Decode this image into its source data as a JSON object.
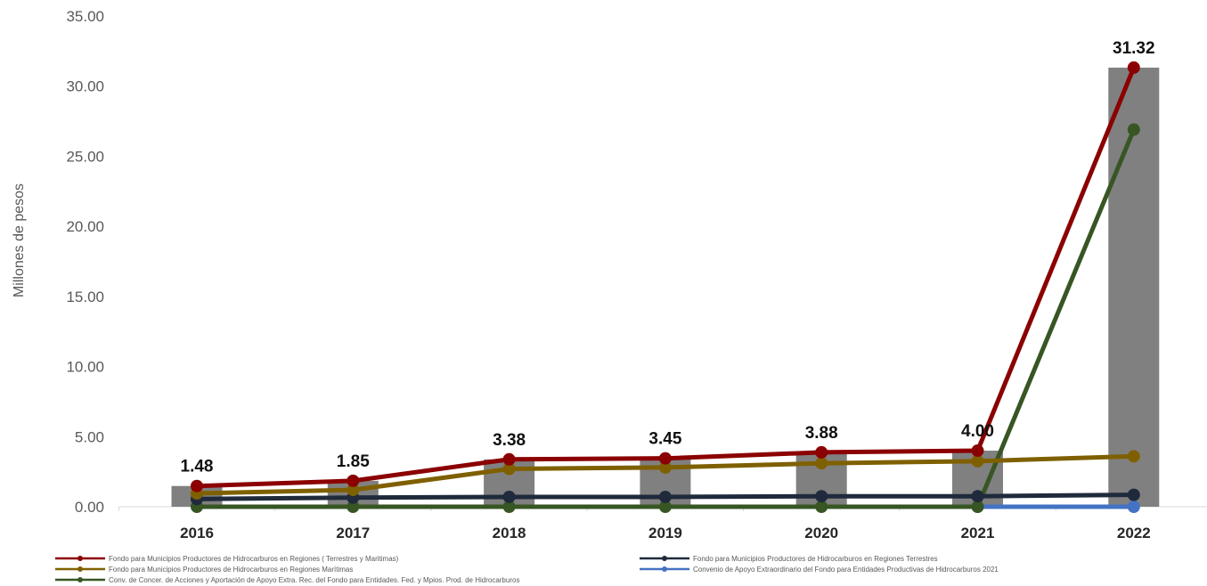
{
  "chart_data": {
    "type": "bar",
    "ylabel": "Millones de pesos",
    "ylim": [
      0,
      35
    ],
    "ytick_labels": [
      "0.00",
      "5.00",
      "10.00",
      "15.00",
      "20.00",
      "25.00",
      "30.00",
      "35.00"
    ],
    "ytick_values": [
      0,
      5,
      10,
      15,
      20,
      25,
      30,
      35
    ],
    "categories": [
      "2016",
      "2017",
      "2018",
      "2019",
      "2020",
      "2021",
      "2022"
    ],
    "bars": {
      "values": [
        1.48,
        1.85,
        3.38,
        3.45,
        3.88,
        4.0,
        31.32
      ],
      "labels": [
        "1.48",
        "1.85",
        "3.38",
        "3.45",
        "3.88",
        "4.00",
        "31.32"
      ],
      "color": "#808080"
    },
    "series": [
      {
        "name": "Fondo para Municipios Productores de Hidrocarburos en Regiones ( Terrestres y Maritimas)",
        "color": "#8b0000",
        "values": [
          1.48,
          1.85,
          3.38,
          3.45,
          3.88,
          4.0,
          31.32
        ]
      },
      {
        "name": "Fondo para Municipios Productores de Hidrocarburos en Regiones Terrestres",
        "color": "#1f2a3c",
        "values": [
          0.55,
          0.65,
          0.7,
          0.7,
          0.75,
          0.75,
          0.85
        ]
      },
      {
        "name": "Fondo para Municipios Productores de Hidrocarburos en Regiones Marítimas",
        "color": "#7f6000",
        "values": [
          0.95,
          1.2,
          2.7,
          2.8,
          3.1,
          3.25,
          3.6
        ]
      },
      {
        "name": "Convenio de Apoyo Extraordinario del Fondo para Entidades Productivas de Hidrocarburos 2021",
        "color": "#4472c4",
        "values": [
          null,
          null,
          null,
          null,
          null,
          0,
          0
        ]
      },
      {
        "name": "Conv. de Concer. de Acciones y Aportación de Apoyo Extra. Rec. del Fondo para Entidades. Fed. y Mpios. Prod. de Hidrocarburos",
        "color": "#375623",
        "values": [
          0,
          0,
          0,
          0,
          0,
          0,
          26.9
        ]
      }
    ],
    "legend_position": "bottom",
    "grid": false
  }
}
